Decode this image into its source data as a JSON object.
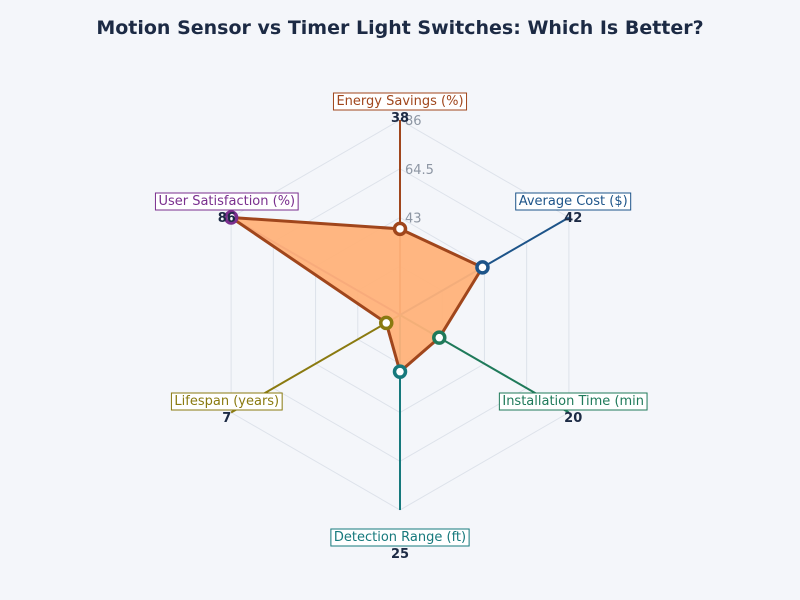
{
  "chart_data": {
    "type": "radar",
    "title": "Motion Sensor vs Timer Light Switches: Which Is Better?",
    "radial_ticks": [
      "43",
      "64.5",
      "86"
    ],
    "rmin": 0,
    "rmax": 86,
    "grid": true,
    "fill_color": "#ffb27a",
    "line_color": "#a0461c",
    "axes": [
      {
        "label": "Energy Savings (%)",
        "value": 38,
        "value_text": "38",
        "color": "#a0461c",
        "display": "Energy Savings (%)"
      },
      {
        "label": "Average Cost ($)",
        "value": 42,
        "value_text": "42",
        "color": "#1d5489",
        "display": "Average Cost ($)"
      },
      {
        "label": "Installation Time (min)",
        "value": 20,
        "value_text": "20",
        "color": "#1f7a5a",
        "display": "Installation Time (min"
      },
      {
        "label": "Detection Range (ft)",
        "value": 25,
        "value_text": "25",
        "color": "#16797c",
        "display": "Detection Range (ft)"
      },
      {
        "label": "Lifespan (years)",
        "value": 7,
        "value_text": "7",
        "color": "#8a7a10",
        "display": "Lifespan (years)"
      },
      {
        "label": "User Satisfaction (%)",
        "value": 86,
        "value_text": "86",
        "color": "#7a2f8e",
        "display": "User Satisfaction (%)"
      }
    ]
  }
}
